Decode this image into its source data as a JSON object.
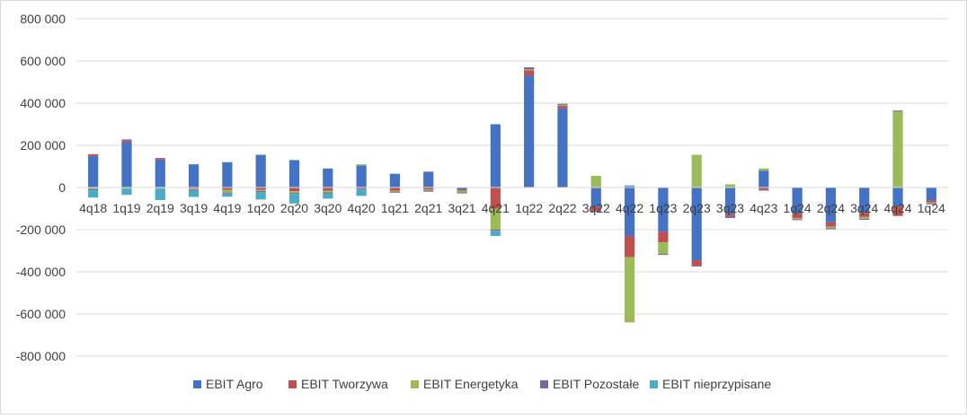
{
  "chart_data": {
    "type": "bar",
    "stacked": true,
    "categories": [
      "4q18",
      "1q19",
      "2q19",
      "3q19",
      "4q19",
      "1q20",
      "2q20",
      "3q20",
      "4q20",
      "1q21",
      "2q21",
      "3q21",
      "4q21",
      "1q22",
      "2q22",
      "3q22",
      "4q22",
      "1q23",
      "2q23",
      "3q23",
      "4q23",
      "1q24",
      "2q24",
      "3q24",
      "4q24",
      "1q24"
    ],
    "series": [
      {
        "name": "EBIT Agro",
        "color": "#4472c4",
        "values": [
          150000,
          215000,
          130000,
          110000,
          120000,
          155000,
          130000,
          90000,
          105000,
          65000,
          75000,
          -10000,
          300000,
          530000,
          375000,
          -90000,
          -230000,
          -210000,
          -345000,
          -125000,
          80000,
          -125000,
          -165000,
          -120000,
          -90000,
          -60000
        ]
      },
      {
        "name": "EBIT Tworzywa",
        "color": "#c0504d",
        "values": [
          8000,
          8000,
          5000,
          -5000,
          -12000,
          -12000,
          -18000,
          -15000,
          -5000,
          -15000,
          -10000,
          -5000,
          -100000,
          25000,
          12000,
          -20000,
          -100000,
          -50000,
          -25000,
          -10000,
          -10000,
          -20000,
          -20000,
          -20000,
          -45000,
          -10000
        ]
      },
      {
        "name": "EBIT Energetyka",
        "color": "#9bbb59",
        "values": [
          -8000,
          -5000,
          -5000,
          -5000,
          -12000,
          -5000,
          -8000,
          -8000,
          5000,
          -5000,
          -5000,
          -8000,
          -100000,
          5000,
          5000,
          55000,
          -310000,
          -55000,
          155000,
          15000,
          10000,
          -5000,
          -8000,
          -8000,
          360000,
          -5000
        ]
      },
      {
        "name": "EBIT Pozostałe",
        "color": "#8064a2",
        "values": [
          -5000,
          5000,
          5000,
          -5000,
          -5000,
          -5000,
          -5000,
          -5000,
          -5000,
          -5000,
          -5000,
          -5000,
          -5000,
          10000,
          5000,
          -5000,
          5000,
          -5000,
          -5000,
          -10000,
          -5000,
          -5000,
          -5000,
          -5000,
          5000,
          -5000
        ]
      },
      {
        "name": "EBIT nieprzypisane",
        "color": "#4bacc6",
        "values": [
          -35000,
          -30000,
          -55000,
          -30000,
          -15000,
          -35000,
          -45000,
          -25000,
          -30000,
          0,
          0,
          0,
          -25000,
          0,
          0,
          0,
          5000,
          0,
          0,
          0,
          0,
          0,
          0,
          0,
          0,
          0
        ]
      }
    ],
    "yticks": [
      "800 000",
      "600 000",
      "400 000",
      "200 000",
      "0",
      "-200 000",
      "-400 000",
      "-600 000",
      "-800 000"
    ],
    "ylim": [
      -800000,
      800000
    ],
    "grid": true,
    "legend_position": "bottom"
  }
}
